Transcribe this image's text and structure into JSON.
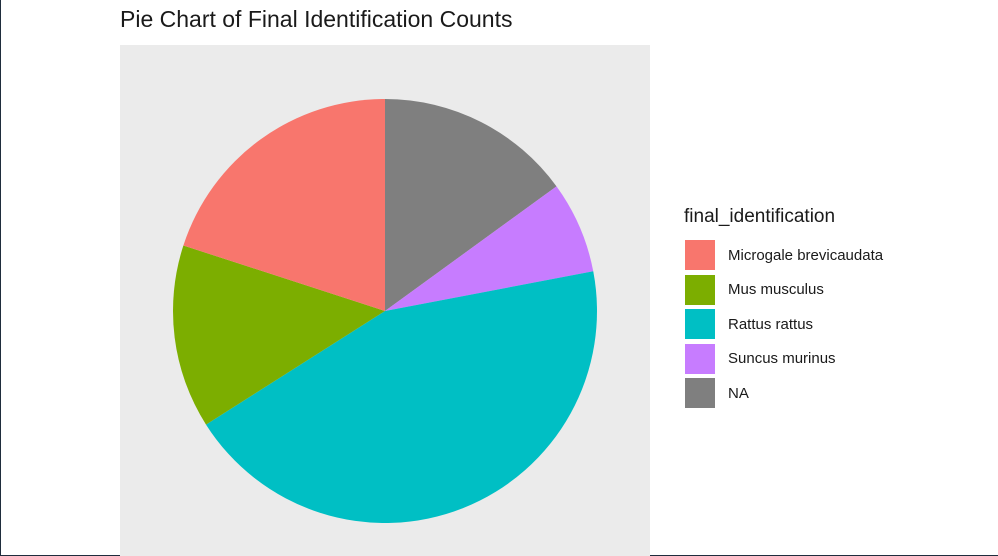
{
  "chart_data": {
    "type": "pie",
    "title": "Pie Chart of Final Identification Counts",
    "legend_title": "final_identification",
    "legend_position": "right",
    "categories": [
      "Microgale brevicaudata",
      "Mus musculus",
      "Rattus rattus",
      "Suncus murinus",
      "NA"
    ],
    "values": [
      20,
      14,
      44,
      7,
      15
    ],
    "colors": [
      "#F8766D",
      "#7CAE00",
      "#00BFC4",
      "#C77CFF",
      "#7F7F7F"
    ]
  }
}
